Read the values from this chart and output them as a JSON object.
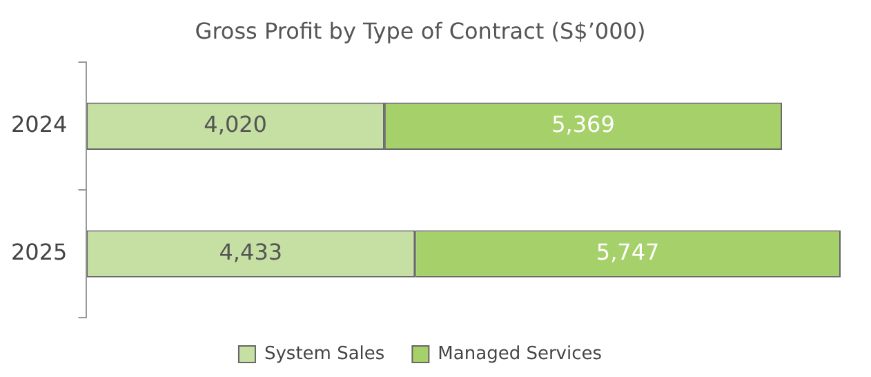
{
  "chart_data": {
    "type": "bar",
    "title": "Gross Profit by Type of Contract (S$’000)",
    "orientation": "horizontal",
    "stacked": true,
    "categories": [
      "2024",
      "2025"
    ],
    "series": [
      {
        "name": "System Sales",
        "color": "#c6e0a4",
        "values": [
          4020,
          4433
        ],
        "value_labels": [
          "4,020",
          "4,433"
        ]
      },
      {
        "name": "Managed Services",
        "color": "#a6d06a",
        "values": [
          5369,
          5747
        ],
        "value_labels": [
          "5,369",
          "5,747"
        ]
      }
    ],
    "legend": "bottom"
  }
}
